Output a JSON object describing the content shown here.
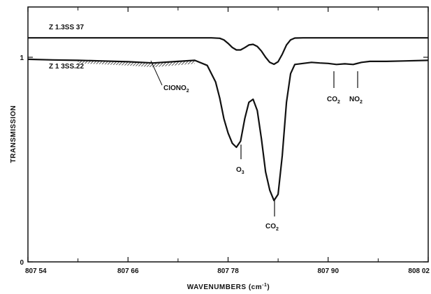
{
  "chart_data": {
    "type": "line",
    "title": "",
    "xlabel": "WAVENUMBERS",
    "xlabel_unit": "(cm",
    "xlabel_unit_sup": "-1",
    "xlabel_unit_close": ")",
    "ylabel": "TRANSMISSION",
    "xlim": [
      807.54,
      808.02
    ],
    "ylim": [
      0,
      1.1
    ],
    "grid": false,
    "x_ticks": [
      {
        "value": 807.54,
        "label": "807 54"
      },
      {
        "value": 807.66,
        "label": "807 66"
      },
      {
        "value": 807.78,
        "label": "807 78"
      },
      {
        "value": 807.9,
        "label": "807 90"
      },
      {
        "value": 808.02,
        "label": "808 02"
      }
    ],
    "x_minor_ticks": [
      807.6,
      807.72,
      807.84,
      807.96
    ],
    "y_ticks": [
      {
        "value": 0,
        "label": "0"
      },
      {
        "value": 1,
        "label": "1"
      }
    ],
    "series": [
      {
        "name": "Z 1.3SS 37",
        "color": "#111111",
        "x": [
          807.54,
          807.6,
          807.7,
          807.76,
          807.77,
          807.775,
          807.78,
          807.785,
          807.79,
          807.795,
          807.8,
          807.805,
          807.81,
          807.815,
          807.82,
          807.825,
          807.83,
          807.835,
          807.84,
          807.845,
          807.85,
          807.855,
          807.86,
          807.87,
          807.9,
          807.96,
          808.02
        ],
        "y": [
          1.095,
          1.095,
          1.095,
          1.095,
          1.093,
          1.085,
          1.068,
          1.048,
          1.036,
          1.036,
          1.047,
          1.06,
          1.063,
          1.053,
          1.03,
          1.0,
          0.975,
          0.966,
          0.978,
          1.015,
          1.06,
          1.085,
          1.094,
          1.095,
          1.095,
          1.095,
          1.095
        ]
      },
      {
        "name": "Z 1 3SS.22",
        "color": "#111111",
        "x": [
          807.54,
          807.57,
          807.6,
          807.63,
          807.66,
          807.69,
          807.72,
          807.74,
          807.755,
          807.765,
          807.77,
          807.775,
          807.78,
          807.785,
          807.79,
          807.795,
          807.8,
          807.805,
          807.81,
          807.815,
          807.82,
          807.825,
          807.83,
          807.835,
          807.84,
          807.845,
          807.85,
          807.855,
          807.86,
          807.87,
          807.88,
          807.89,
          807.9,
          807.91,
          807.92,
          807.93,
          807.94,
          807.95,
          807.97,
          807.99,
          808.02
        ],
        "y": [
          0.99,
          0.987,
          0.985,
          0.982,
          0.978,
          0.972,
          0.98,
          0.985,
          0.96,
          0.88,
          0.8,
          0.7,
          0.63,
          0.58,
          0.56,
          0.59,
          0.7,
          0.78,
          0.795,
          0.74,
          0.6,
          0.44,
          0.35,
          0.3,
          0.33,
          0.52,
          0.78,
          0.92,
          0.965,
          0.97,
          0.975,
          0.972,
          0.97,
          0.965,
          0.968,
          0.965,
          0.975,
          0.98,
          0.98,
          0.982,
          0.985
        ]
      }
    ],
    "hatched_region": {
      "label": "CIONO",
      "label_sub": "2",
      "x_start": 807.6,
      "x_end": 807.74
    },
    "annotations": [
      {
        "id": "o3",
        "text": "O",
        "sub": "3",
        "x": 807.784
      },
      {
        "id": "co2-main",
        "text": "CO",
        "sub": "2",
        "x": 807.833
      },
      {
        "id": "co2-small",
        "text": "CO",
        "sub": "2",
        "x": 807.895
      },
      {
        "id": "no2",
        "text": "NO",
        "sub": "2",
        "x": 807.918
      }
    ]
  }
}
